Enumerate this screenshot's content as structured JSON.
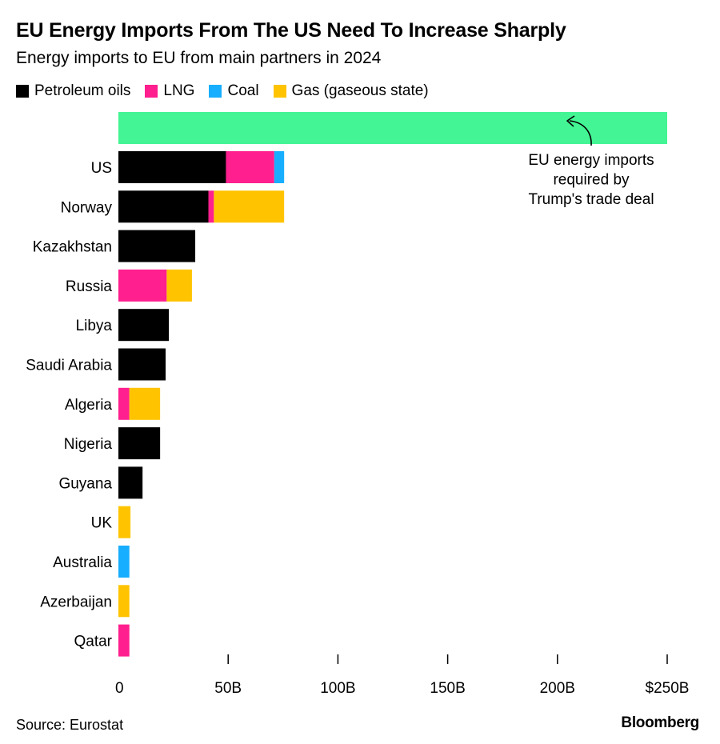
{
  "title": "EU Energy Imports From The US Need To Increase Sharply",
  "subtitle": "Energy imports to EU from main partners in 2024",
  "source": "Source: Eurostat",
  "brand": "Bloomberg",
  "chart_data": {
    "type": "bar",
    "orientation": "horizontal",
    "stacked": true,
    "title": "EU Energy Imports From The US Need To Increase Sharply",
    "subtitle": "Energy imports to EU from main partners in 2024",
    "xlabel": "",
    "ylabel": "",
    "xlim": [
      0,
      250
    ],
    "x_ticks": [
      0,
      50,
      100,
      150,
      200,
      250
    ],
    "x_tick_labels": [
      "0",
      "50B",
      "100B",
      "150B",
      "200B",
      "$250B"
    ],
    "grid": false,
    "legend_position": "top-left",
    "categories": [
      "US",
      "Norway",
      "Kazakhstan",
      "Russia",
      "Libya",
      "Saudi Arabia",
      "Algeria",
      "Nigeria",
      "Guyana",
      "UK",
      "Australia",
      "Azerbaijan",
      "Qatar"
    ],
    "series": [
      {
        "name": "Petroleum oils",
        "color": "#000000",
        "values": [
          49,
          41,
          35,
          0,
          23,
          21.5,
          0,
          19,
          11,
          0,
          0,
          0,
          0
        ]
      },
      {
        "name": "LNG",
        "color": "#ff1f8e",
        "values": [
          22,
          2.5,
          0,
          22,
          0,
          0,
          5,
          0,
          0,
          0,
          0,
          0,
          5
        ]
      },
      {
        "name": "Coal",
        "color": "#18aeff",
        "values": [
          4.5,
          0,
          0,
          0,
          0,
          0,
          0,
          0,
          0,
          0,
          5,
          0,
          0
        ]
      },
      {
        "name": "Gas (gaseous state)",
        "color": "#ffc300",
        "values": [
          0,
          32,
          0,
          11.5,
          0,
          0,
          14,
          0,
          0,
          5.5,
          0,
          5,
          0
        ]
      }
    ],
    "reference_bar": {
      "value": 250,
      "color": "#43f594",
      "annotation": [
        "EU energy imports",
        "required by",
        "Trump's trade deal"
      ]
    }
  }
}
